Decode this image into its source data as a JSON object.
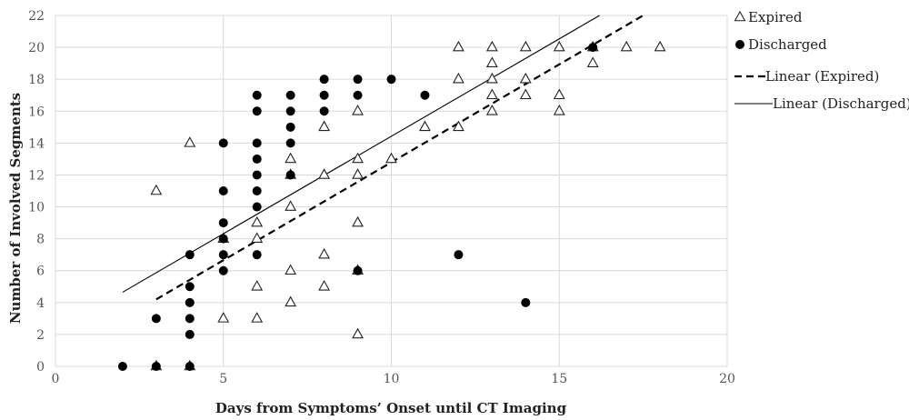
{
  "chart_data": {
    "type": "scatter",
    "title": "",
    "xlabel": "Days from Symptoms’ Onset until CT Imaging",
    "ylabel": "Number of Involved Segments",
    "xlim": [
      0,
      20
    ],
    "ylim": [
      0,
      22
    ],
    "xticks": [
      "0",
      "5",
      "10",
      "15",
      "20"
    ],
    "yticks": [
      "0",
      "2",
      "4",
      "6",
      "8",
      "10",
      "12",
      "14",
      "16",
      "18",
      "20",
      "22"
    ],
    "grid": true,
    "legend_position": "right",
    "series": [
      {
        "name": "Expired",
        "marker": "open-triangle",
        "color": "#222222",
        "points": [
          [
            3,
            11
          ],
          [
            3,
            0
          ],
          [
            4,
            14
          ],
          [
            4,
            0
          ],
          [
            5,
            3
          ],
          [
            5,
            8
          ],
          [
            6,
            3
          ],
          [
            6,
            5
          ],
          [
            6,
            8
          ],
          [
            6,
            9
          ],
          [
            7,
            4
          ],
          [
            7,
            6
          ],
          [
            7,
            10
          ],
          [
            7,
            12
          ],
          [
            7,
            13
          ],
          [
            8,
            5
          ],
          [
            8,
            7
          ],
          [
            8,
            12
          ],
          [
            8,
            15
          ],
          [
            9,
            2
          ],
          [
            9,
            6
          ],
          [
            9,
            9
          ],
          [
            9,
            12
          ],
          [
            9,
            13
          ],
          [
            9,
            16
          ],
          [
            10,
            13
          ],
          [
            11,
            15
          ],
          [
            12,
            15
          ],
          [
            12,
            18
          ],
          [
            12,
            20
          ],
          [
            13,
            16
          ],
          [
            13,
            17
          ],
          [
            13,
            18
          ],
          [
            13,
            19
          ],
          [
            13,
            20
          ],
          [
            14,
            17
          ],
          [
            14,
            18
          ],
          [
            14,
            20
          ],
          [
            15,
            16
          ],
          [
            15,
            17
          ],
          [
            15,
            20
          ],
          [
            16,
            19
          ],
          [
            16,
            20
          ],
          [
            17,
            20
          ],
          [
            18,
            20
          ]
        ]
      },
      {
        "name": "Discharged",
        "marker": "filled-circle",
        "color": "#000000",
        "points": [
          [
            2,
            0
          ],
          [
            3,
            0
          ],
          [
            3,
            3
          ],
          [
            4,
            0
          ],
          [
            4,
            2
          ],
          [
            4,
            3
          ],
          [
            4,
            4
          ],
          [
            4,
            5
          ],
          [
            4,
            7
          ],
          [
            5,
            6
          ],
          [
            5,
            7
          ],
          [
            5,
            8
          ],
          [
            5,
            9
          ],
          [
            5,
            11
          ],
          [
            5,
            14
          ],
          [
            6,
            7
          ],
          [
            6,
            10
          ],
          [
            6,
            11
          ],
          [
            6,
            12
          ],
          [
            6,
            13
          ],
          [
            6,
            14
          ],
          [
            6,
            16
          ],
          [
            6,
            17
          ],
          [
            7,
            12
          ],
          [
            7,
            14
          ],
          [
            7,
            15
          ],
          [
            7,
            16
          ],
          [
            7,
            17
          ],
          [
            8,
            16
          ],
          [
            8,
            17
          ],
          [
            8,
            18
          ],
          [
            9,
            6
          ],
          [
            9,
            17
          ],
          [
            9,
            18
          ],
          [
            10,
            18
          ],
          [
            11,
            17
          ],
          [
            12,
            7
          ],
          [
            14,
            4
          ],
          [
            16,
            20
          ]
        ]
      },
      {
        "name": "Linear (Expired)",
        "type": "trendline",
        "style": "dashed",
        "color": "#000000",
        "x": [
          3,
          17.5
        ],
        "y": [
          4.2,
          22
        ]
      },
      {
        "name": "Linear (Discharged)",
        "type": "trendline",
        "style": "solid",
        "color": "#000000",
        "x": [
          2,
          16.2
        ],
        "y": [
          4.65,
          22
        ]
      }
    ]
  }
}
